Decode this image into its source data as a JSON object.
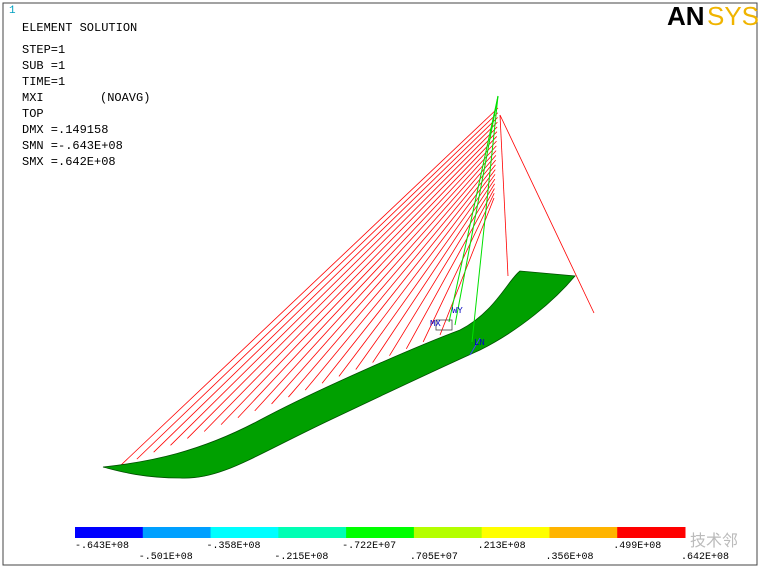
{
  "window_id": "1",
  "header": {
    "title": "ELEMENT SOLUTION",
    "lines": [
      "STEP=1",
      "SUB =1",
      "TIME=1"
    ],
    "item": "MXI",
    "avg": "(NOAVG)",
    "layer": "TOP",
    "stats": [
      "DMX =.149158",
      "SMN =-.643E+08",
      "SMX =.642E+08"
    ]
  },
  "logo": {
    "left": "AN",
    "right": "SYS"
  },
  "triad": {
    "labels": [
      "WY",
      "MX",
      "LN"
    ]
  },
  "legend": {
    "colors": [
      "#0000ff",
      "#00a0ff",
      "#00ffff",
      "#00ffb4",
      "#00ff00",
      "#b4ff00",
      "#ffff00",
      "#ffb400",
      "#ff0000"
    ],
    "labels": [
      "-.643E+08",
      "-.501E+08",
      "-.358E+08",
      "-.215E+08",
      "-.722E+07",
      ".705E+07",
      ".213E+08",
      ".356E+08",
      ".499E+08",
      ".642E+08"
    ]
  },
  "watermark": "技术邻"
}
